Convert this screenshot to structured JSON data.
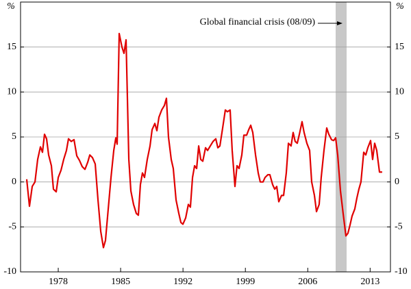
{
  "chart_data": {
    "type": "line",
    "y_label": "%",
    "y2_label": "%",
    "annotation": "Global financial crisis (08/09)",
    "shaded_region": [
      2009.13,
      2010.36
    ],
    "xlim": [
      1973.77,
      2015.28
    ],
    "xticks": [
      1978,
      1985,
      1992,
      1999,
      2006,
      2013
    ],
    "ylim": [
      -10,
      20
    ],
    "yticks": [
      -10,
      -5,
      0,
      5,
      10,
      15
    ],
    "grid": true,
    "color": "#e00000",
    "x": [
      1974.46,
      1974.77,
      1975.08,
      1975.39,
      1975.69,
      1976.0,
      1976.23,
      1976.46,
      1976.69,
      1976.92,
      1977.23,
      1977.46,
      1977.77,
      1978.0,
      1978.31,
      1978.61,
      1978.92,
      1979.15,
      1979.46,
      1979.77,
      1980.08,
      1980.38,
      1980.69,
      1981.0,
      1981.31,
      1981.54,
      1981.84,
      1982.15,
      1982.46,
      1982.77,
      1983.07,
      1983.3,
      1983.61,
      1983.92,
      1984.23,
      1984.46,
      1984.61,
      1984.84,
      1985.15,
      1985.38,
      1985.61,
      1985.92,
      1986.15,
      1986.45,
      1986.76,
      1986.99,
      1987.22,
      1987.45,
      1987.68,
      1987.99,
      1988.3,
      1988.53,
      1988.84,
      1989.07,
      1989.3,
      1989.61,
      1989.91,
      1990.14,
      1990.37,
      1990.68,
      1990.91,
      1991.22,
      1991.53,
      1991.76,
      1991.99,
      1992.3,
      1992.6,
      1992.83,
      1993.07,
      1993.3,
      1993.53,
      1993.76,
      1993.99,
      1994.22,
      1994.53,
      1994.76,
      1995.06,
      1995.37,
      1995.68,
      1995.91,
      1996.14,
      1996.45,
      1996.75,
      1996.98,
      1997.29,
      1997.52,
      1997.83,
      1998.06,
      1998.29,
      1998.6,
      1998.83,
      1999.14,
      1999.37,
      1999.6,
      1999.83,
      2000.14,
      2000.44,
      2000.67,
      2000.98,
      2001.21,
      2001.52,
      2001.75,
      2002.06,
      2002.29,
      2002.52,
      2002.75,
      2003.06,
      2003.29,
      2003.59,
      2003.83,
      2004.13,
      2004.36,
      2004.59,
      2004.82,
      2005.06,
      2005.36,
      2005.59,
      2005.9,
      2006.21,
      2006.44,
      2006.75,
      2006.98,
      2007.28,
      2007.51,
      2007.82,
      2008.13,
      2008.36,
      2008.67,
      2008.9,
      2009.13,
      2009.36,
      2009.67,
      2009.97,
      2010.28,
      2010.51,
      2010.74,
      2010.97,
      2011.28,
      2011.51,
      2011.74,
      2011.97,
      2012.28,
      2012.51,
      2012.74,
      2013.05,
      2013.28,
      2013.51,
      2013.74,
      2014.05,
      2014.35
    ],
    "values": [
      0.3,
      -2.7,
      -0.5,
      0,
      2.5,
      3.9,
      3.3,
      5.3,
      4.8,
      3,
      1.8,
      -0.8,
      -1.1,
      0.5,
      1.3,
      2.5,
      3.5,
      4.8,
      4.5,
      4.7,
      2.9,
      2.4,
      1.7,
      1.4,
      2.2,
      3,
      2.7,
      2,
      -2,
      -5.5,
      -7.3,
      -6.5,
      -3,
      0.5,
      3.5,
      4.9,
      4.2,
      16.5,
      15,
      14.3,
      15.8,
      2.5,
      -1,
      -2.5,
      -3.5,
      -3.7,
      -0.3,
      1,
      0.5,
      2.5,
      4,
      5.8,
      6.5,
      5.7,
      7.2,
      8,
      8.5,
      9.3,
      5,
      2.5,
      1.5,
      -2,
      -3.5,
      -4.5,
      -4.7,
      -4,
      -2.5,
      -2.8,
      0.5,
      1.8,
      1.5,
      4,
      2.5,
      2.3,
      3.8,
      3.5,
      4,
      4.5,
      4.8,
      3.8,
      4,
      6,
      8,
      7.8,
      8,
      3.5,
      -0.5,
      1.8,
      1.5,
      3,
      5.2,
      5.2,
      5.8,
      6.3,
      5.5,
      3,
      1,
      0,
      0,
      0.5,
      0.8,
      0.8,
      -0.3,
      -0.8,
      -0.5,
      -2.2,
      -1.5,
      -1.5,
      1,
      4.3,
      4,
      5.5,
      4.5,
      4.3,
      5.3,
      6.7,
      5.5,
      4.3,
      3.5,
      0,
      -1.5,
      -3.3,
      -2.5,
      0.5,
      3.5,
      6,
      5.3,
      4.7,
      4.6,
      4.9,
      3,
      -1,
      -3.5,
      -6,
      -5.7,
      -4.8,
      -3.8,
      -3,
      -1.8,
      -0.8,
      0,
      3.3,
      3,
      3.8,
      4.6,
      2.5,
      4.3,
      3.5,
      1.1,
      1.1
    ]
  }
}
